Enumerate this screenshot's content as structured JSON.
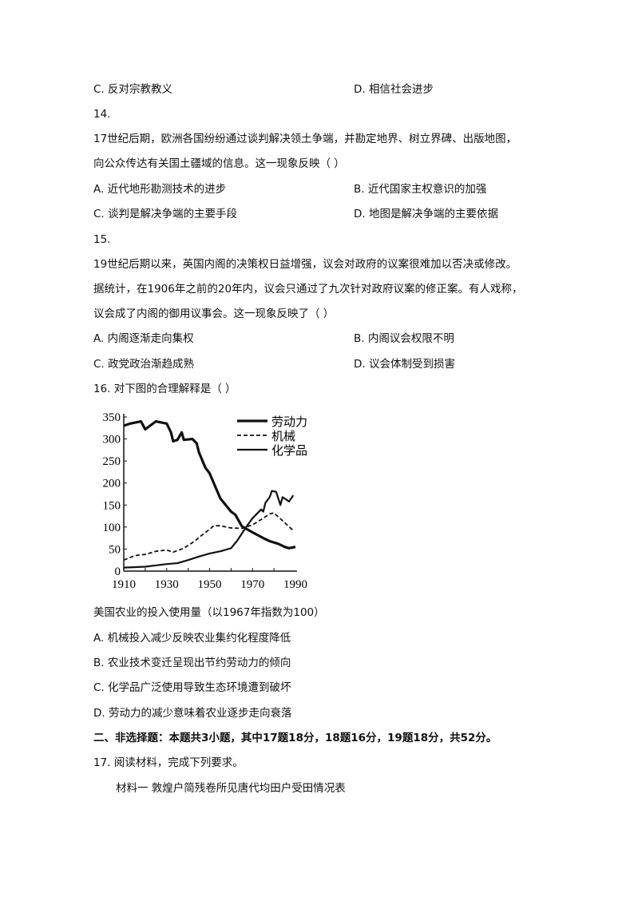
{
  "q13": {
    "opt_c": "C.  反对宗教教义",
    "opt_d": "D.  相信社会进步"
  },
  "q14": {
    "number": "14.",
    "stem1": "17世纪后期，欧洲各国纷纷通过谈判解决领土争端，并勘定地界、树立界碑、出版地图，",
    "stem2": "向公众传达有关国土疆域的信息。这一现象反映（     ）",
    "opt_a": "A.  近代地形勘测技术的进步",
    "opt_b": "B.  近代国家主权意识的加强",
    "opt_c": "C.  谈判是解决争端的主要手段",
    "opt_d": "D.  地图是解决争端的主要依据"
  },
  "q15": {
    "number": "15.",
    "stem1": "19世纪后期以来，英国内阁的决策权日益增强，议会对政府的议案很难加以否决或修改。",
    "stem2": "据统计，在1906年之前的20年内，议会只通过了九次针对政府议案的修正案。有人戏称，",
    "stem3": "议会成了内阁的御用议事会。这一现象反映了（     ）",
    "opt_a": "A.  内阁逐渐走向集权",
    "opt_b": "B.  内阁议会权限不明",
    "opt_c": "C.  政党政治渐趋成熟",
    "opt_d": "D.  议会体制受到损害"
  },
  "q16": {
    "stem": "16.  对下图的合理解释是（     ）",
    "caption": "美国农业的投入使用量（以1967年指数为100）",
    "opt_a": "A.  机械投入减少反映农业集约化程度降低",
    "opt_b": "B.  农业技术变迁呈现出节约劳动力的倾向",
    "opt_c": "C.  化学品广泛使用导致生态环境遭到破坏",
    "opt_d": "D.  劳动力的减少意味着农业逐步走向衰落"
  },
  "section2": {
    "heading": "二、非选择题：本题共3小题，其中17题18分，18题16分，19题18分，共52分。"
  },
  "q17": {
    "stem": "17.  阅读材料，完成下列要求。",
    "material1": "材料一    敦煌户简残卷所见唐代均田户受田情况表"
  },
  "chart_data": {
    "type": "line",
    "xlim": [
      1910,
      1990
    ],
    "ylim": [
      0,
      350
    ],
    "xticks": [
      "1910",
      "1930",
      "1950",
      "1970",
      "1990"
    ],
    "yticks": [
      "0",
      "50",
      "100",
      "150",
      "200",
      "250",
      "300",
      "350"
    ],
    "legend_position": "top-right",
    "series": [
      {
        "name": "劳动力",
        "style": "solid-thick",
        "points": [
          [
            1910,
            330
          ],
          [
            1913,
            335
          ],
          [
            1918,
            340
          ],
          [
            1920,
            322
          ],
          [
            1925,
            340
          ],
          [
            1930,
            335
          ],
          [
            1932,
            315
          ],
          [
            1933,
            295
          ],
          [
            1935,
            298
          ],
          [
            1937,
            315
          ],
          [
            1938,
            298
          ],
          [
            1942,
            300
          ],
          [
            1944,
            290
          ],
          [
            1945,
            270
          ],
          [
            1948,
            235
          ],
          [
            1950,
            222
          ],
          [
            1955,
            165
          ],
          [
            1960,
            135
          ],
          [
            1962,
            128
          ],
          [
            1965,
            102
          ],
          [
            1970,
            88
          ],
          [
            1975,
            75
          ],
          [
            1978,
            68
          ],
          [
            1982,
            62
          ],
          [
            1985,
            55
          ],
          [
            1987,
            52
          ],
          [
            1990,
            55
          ]
        ]
      },
      {
        "name": "机械",
        "style": "dashed",
        "points": [
          [
            1910,
            25
          ],
          [
            1915,
            35
          ],
          [
            1920,
            38
          ],
          [
            1925,
            45
          ],
          [
            1930,
            48
          ],
          [
            1933,
            43
          ],
          [
            1938,
            52
          ],
          [
            1943,
            68
          ],
          [
            1946,
            80
          ],
          [
            1950,
            95
          ],
          [
            1952,
            103
          ],
          [
            1955,
            103
          ],
          [
            1960,
            98
          ],
          [
            1965,
            97
          ],
          [
            1970,
            105
          ],
          [
            1975,
            120
          ],
          [
            1978,
            130
          ],
          [
            1980,
            132
          ],
          [
            1985,
            110
          ],
          [
            1989,
            92
          ]
        ]
      },
      {
        "name": "化学品",
        "style": "solid",
        "points": [
          [
            1910,
            8
          ],
          [
            1920,
            10
          ],
          [
            1925,
            13
          ],
          [
            1930,
            16
          ],
          [
            1935,
            18
          ],
          [
            1940,
            25
          ],
          [
            1945,
            33
          ],
          [
            1950,
            40
          ],
          [
            1955,
            45
          ],
          [
            1960,
            52
          ],
          [
            1963,
            70
          ],
          [
            1965,
            85
          ],
          [
            1967,
            100
          ],
          [
            1970,
            120
          ],
          [
            1974,
            140
          ],
          [
            1975,
            135
          ],
          [
            1976,
            155
          ],
          [
            1978,
            168
          ],
          [
            1979,
            182
          ],
          [
            1981,
            180
          ],
          [
            1983,
            150
          ],
          [
            1984,
            168
          ],
          [
            1987,
            158
          ],
          [
            1989,
            172
          ]
        ]
      }
    ]
  }
}
